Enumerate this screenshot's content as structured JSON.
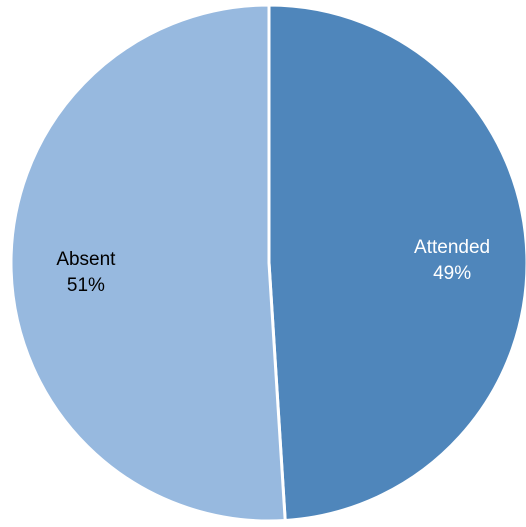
{
  "chart_data": {
    "type": "pie",
    "title": "",
    "start_angle_deg": 0,
    "direction": "clockwise",
    "slices": [
      {
        "label": "Attended",
        "value": 49,
        "pct_label": "49%",
        "color": "#4f86bb",
        "label_color": "#ffffff"
      },
      {
        "label": "Absent",
        "value": 51,
        "pct_label": "51%",
        "color": "#97b9df",
        "label_color": "#000000"
      }
    ],
    "legend": "none"
  }
}
